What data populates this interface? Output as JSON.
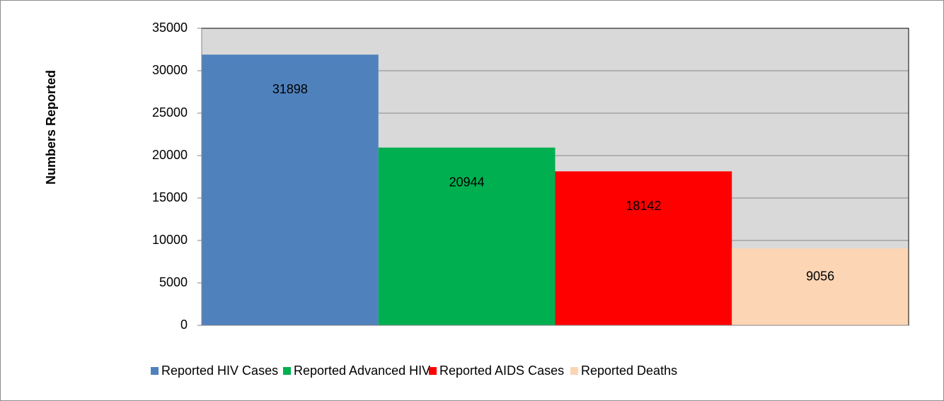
{
  "chart_data": {
    "type": "bar",
    "ylabel": "Numbers Reported",
    "categories": [
      null
    ],
    "series": [
      {
        "name": "Reported HIV Cases",
        "color": "#4f81bd",
        "values": [
          31898
        ]
      },
      {
        "name": "Reported Advanced HIV",
        "color": "#00b050",
        "values": [
          20944
        ]
      },
      {
        "name": "Reported AIDS Cases",
        "color": "#ff0000",
        "values": [
          18142
        ]
      },
      {
        "name": "Reported Deaths",
        "color": "#fcd5b5",
        "values": [
          9056
        ]
      }
    ],
    "ylim": [
      0,
      35000
    ],
    "yticks": [
      0,
      5000,
      10000,
      15000,
      20000,
      25000,
      30000,
      35000
    ],
    "grid": true,
    "legend": "bottom"
  }
}
